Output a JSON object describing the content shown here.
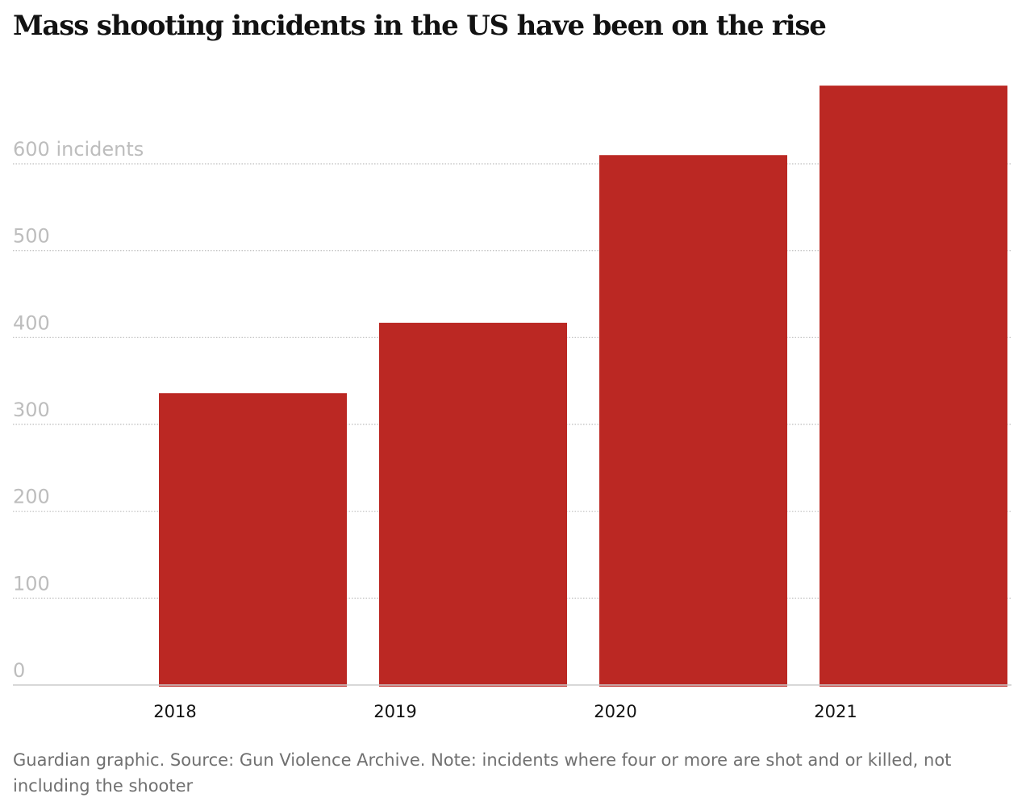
{
  "title": "Mass shooting incidents in the US have been on the rise",
  "footer": "Guardian graphic. Source: Gun Violence Archive. Note: incidents where four or more are shot and or killed, not including the shooter",
  "chart_data": {
    "type": "bar",
    "title": "Mass shooting incidents in the US have been on the rise",
    "categories": [
      "2018",
      "2019",
      "2020",
      "2021"
    ],
    "values": [
      336,
      417,
      610,
      690
    ],
    "ylim": [
      0,
      700
    ],
    "yticks": [
      0,
      100,
      200,
      300,
      400,
      500,
      600
    ],
    "ytick_labels": [
      "0",
      "100",
      "200",
      "300",
      "400",
      "500",
      "600 incidents"
    ],
    "grid": true,
    "bar_color": "#bb2823"
  }
}
